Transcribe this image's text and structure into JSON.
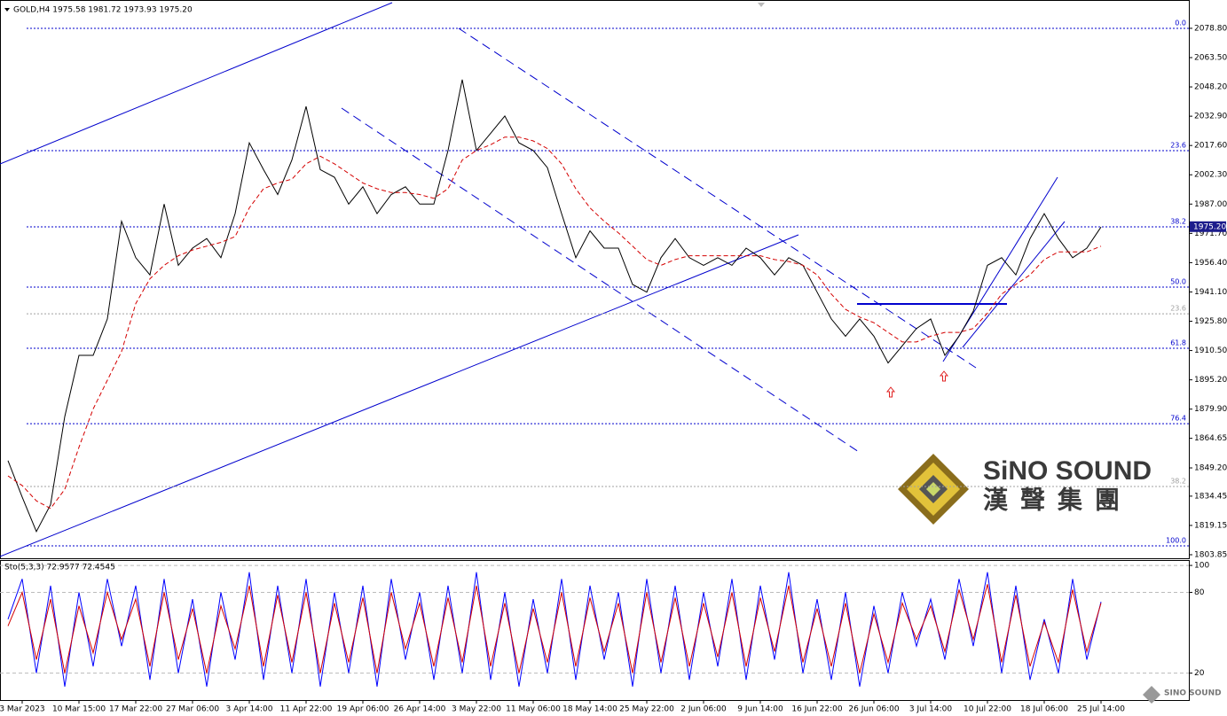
{
  "chart_data": [
    {
      "type": "line",
      "title": "GOLD,H4  1975.58 1981.72 1973.93 1975.20",
      "categories": [
        null,
        "3 Mar 2023",
        null,
        null,
        null,
        "10 Mar 15:00",
        null,
        null,
        null,
        "17 Mar 22:00",
        null,
        null,
        null,
        "27 Mar 06:00",
        null,
        null,
        null,
        "3 Apr 14:00",
        null,
        null,
        null,
        "11 Apr 22:00",
        null,
        null,
        null,
        "19 Apr 06:00",
        null,
        null,
        null,
        "26 Apr 14:00",
        null,
        null,
        null,
        "3 May 22:00",
        null,
        null,
        null,
        "11 May 06:00",
        null,
        null,
        null,
        "18 May 14:00",
        null,
        null,
        null,
        "25 May 22:00",
        null,
        null,
        null,
        "2 Jun 06:00",
        null,
        null,
        null,
        "9 Jun 14:00",
        null,
        null,
        null,
        "16 Jun 22:00",
        null,
        null,
        null,
        "26 Jun 06:00",
        null,
        null,
        null,
        "3 Jul 14:00",
        null,
        null,
        null,
        "10 Jul 22:00",
        null,
        null,
        null,
        "18 Jul 06:00",
        null,
        null,
        null,
        "25 Jul 14:00"
      ],
      "series": [
        {
          "color": "#000000",
          "style": "solid",
          "values": [
            1853,
            1834,
            1816,
            1830,
            1876,
            1908,
            1908,
            1927,
            1978,
            1959,
            1950,
            1987,
            1955,
            1964,
            1969,
            1959,
            1982,
            2019,
            2005,
            1992,
            2010,
            2038,
            2005,
            2001,
            1987,
            1996,
            1982,
            1992,
            1996,
            1987,
            1987,
            2015,
            2052,
            2015,
            2024,
            2033,
            2019,
            2015,
            2006,
            1982,
            1959,
            1973,
            1964,
            1964,
            1945,
            1941,
            1959,
            1969,
            1959,
            1955,
            1959,
            1955,
            1964,
            1959,
            1950,
            1959,
            1955,
            1941,
            1927,
            1918,
            1927,
            1918,
            1904,
            1913,
            1922,
            1927,
            1908,
            1918,
            1931,
            1955,
            1959,
            1950,
            1969,
            1982,
            1969,
            1959,
            1964,
            1975
          ]
        },
        {
          "color": "#d40000",
          "style": "dashed",
          "values": [
            1845,
            1840,
            1832,
            1828,
            1838,
            1860,
            1880,
            1895,
            1910,
            1935,
            1948,
            1955,
            1960,
            1963,
            1965,
            1967,
            1970,
            1985,
            1995,
            1998,
            2000,
            2008,
            2012,
            2008,
            2003,
            1998,
            1995,
            1993,
            1993,
            1992,
            1990,
            1995,
            2010,
            2015,
            2018,
            2022,
            2022,
            2020,
            2016,
            2008,
            1995,
            1985,
            1978,
            1972,
            1965,
            1958,
            1955,
            1958,
            1960,
            1960,
            1960,
            1960,
            1960,
            1960,
            1958,
            1957,
            1955,
            1950,
            1940,
            1932,
            1928,
            1925,
            1920,
            1915,
            1915,
            1918,
            1920,
            1920,
            1922,
            1930,
            1940,
            1945,
            1950,
            1958,
            1962,
            1962,
            1962,
            1965
          ]
        }
      ],
      "ylim": [
        1802,
        2092.2
      ],
      "yticks": [
        1803.85,
        1819.15,
        1834.45,
        {
          "value": 1849.2,
          "label": "1849.20"
        },
        1864.65,
        {
          "value": 1879.9,
          "label": "1879.90"
        },
        {
          "value": 1895.2,
          "label": "1895.20"
        },
        {
          "value": 1910.5,
          "label": "1910.50"
        },
        {
          "value": 1925.8,
          "label": "1925.80"
        },
        {
          "value": 1941.1,
          "label": "1941.10"
        },
        {
          "value": 1956.4,
          "label": "1956.40"
        },
        {
          "value": 1971.7,
          "label": "1971.70"
        },
        {
          "value": 1987.0,
          "label": "1987.00"
        },
        {
          "value": 2002.3,
          "label": "2002.30"
        },
        {
          "value": 2017.6,
          "label": "2017.60"
        },
        {
          "value": 2032.9,
          "label": "2032.90"
        },
        {
          "value": 2048.2,
          "label": "2048.20"
        },
        {
          "value": 2063.5,
          "label": "2063.50"
        },
        {
          "value": 2078.8,
          "label": "2078.80"
        }
      ],
      "last_price": {
        "value": 1975.2,
        "label": "1975.20"
      },
      "fib_levels": [
        {
          "value": 2078.8,
          "label": "0.0",
          "color": "#0000cd"
        },
        {
          "value": 2014.9,
          "label": "23.6",
          "color": "#0000cd"
        },
        {
          "value": 1975.1,
          "label": "38.2",
          "color": "#0000cd"
        },
        {
          "value": 1943.6,
          "label": "50.0",
          "color": "#0000cd"
        },
        {
          "value": 1911.7,
          "label": "61.8",
          "color": "#0000cd"
        },
        {
          "value": 1872.3,
          "label": "76.4",
          "color": "#0000cd"
        },
        {
          "value": 1808.5,
          "label": "100.0",
          "color": "#0000cd"
        },
        {
          "value": 1929.7,
          "label": "23.6",
          "color": "#a0a0a0"
        },
        {
          "value": 1839.5,
          "label": "38.2",
          "color": "#a0a0a0"
        }
      ]
    },
    {
      "type": "line",
      "title": "Sto(5,3,3) 72.9577 72.4545",
      "series": [
        {
          "color": "#0000ff",
          "style": "solid",
          "values": [
            60,
            90,
            20,
            85,
            10,
            80,
            25,
            90,
            40,
            85,
            15,
            90,
            20,
            75,
            10,
            80,
            30,
            95,
            15,
            85,
            20,
            90,
            10,
            80,
            20,
            85,
            10,
            90,
            30,
            80,
            15,
            85,
            20,
            95,
            15,
            80,
            10,
            75,
            20,
            90,
            15,
            85,
            30,
            80,
            10,
            90,
            20,
            85,
            15,
            80,
            25,
            90,
            15,
            85,
            30,
            95,
            20,
            75,
            15,
            80,
            10,
            70,
            20,
            80,
            40,
            75,
            30,
            90,
            40,
            95,
            20,
            85,
            15,
            60,
            20,
            90,
            30,
            73
          ]
        },
        {
          "color": "#d40000",
          "style": "solid",
          "values": [
            55,
            80,
            30,
            75,
            20,
            70,
            35,
            80,
            45,
            75,
            25,
            80,
            30,
            68,
            20,
            70,
            38,
            85,
            25,
            78,
            28,
            80,
            20,
            72,
            28,
            76,
            20,
            80,
            38,
            72,
            25,
            76,
            28,
            85,
            25,
            72,
            20,
            68,
            28,
            80,
            25,
            76,
            36,
            72,
            20,
            80,
            28,
            76,
            25,
            72,
            32,
            80,
            25,
            76,
            36,
            85,
            28,
            68,
            25,
            72,
            20,
            64,
            28,
            72,
            45,
            70,
            36,
            82,
            45,
            86,
            28,
            78,
            25,
            58,
            28,
            82,
            36,
            72
          ]
        }
      ],
      "ylim": [
        0,
        104
      ],
      "yticks": [
        20,
        80,
        100
      ]
    }
  ],
  "watermark": {
    "brand": "SiNO SOUND",
    "chinese": "漢聲集團",
    "small": "SINO SOUND"
  }
}
